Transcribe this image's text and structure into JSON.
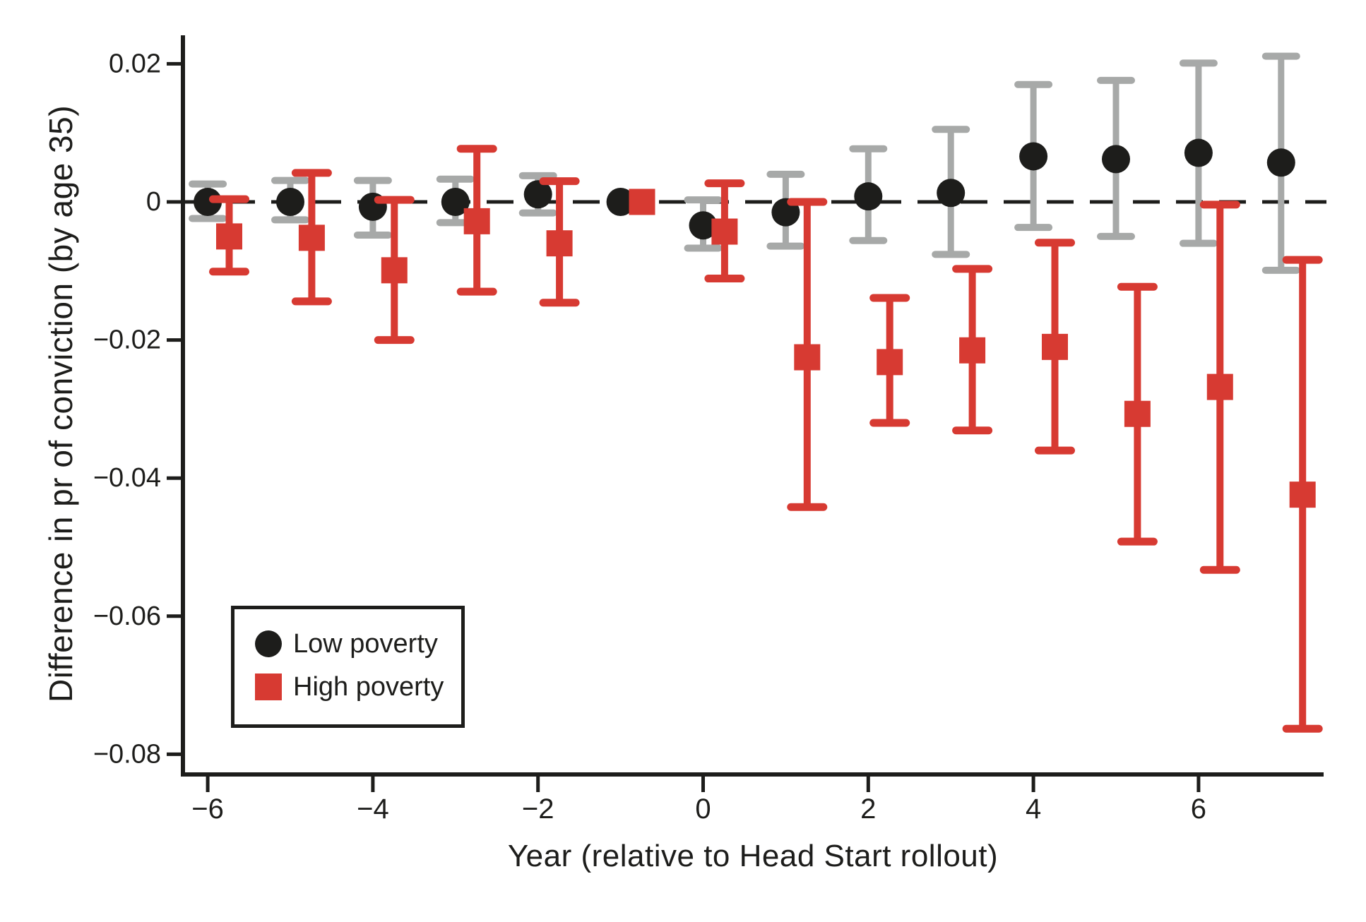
{
  "figure": {
    "background": "#ffffff"
  },
  "colors": {
    "axis": "#1d1d1b",
    "text": "#1d1d1b",
    "low_poverty_marker": "#1d1d1b",
    "low_poverty_errorbar": "#a7a9a8",
    "high_poverty_marker": "#d73a32",
    "high_poverty_errorbar": "#d73a32"
  },
  "chart_data": {
    "type": "scatter",
    "title": "",
    "xlabel": "Year (relative to Head Start rollout)",
    "ylabel": "Difference in pr of conviction (by age 35)",
    "grid": false,
    "zero_line": {
      "shown": true,
      "value": 0,
      "style": "dashed",
      "color": "#1d1d1b"
    },
    "xlim": [
      -6.3,
      7.5
    ],
    "ylim": [
      -0.083,
      0.024
    ],
    "x_ticks": [
      {
        "value": -6,
        "label": "−6"
      },
      {
        "value": -4,
        "label": "−4"
      },
      {
        "value": -2,
        "label": "−2"
      },
      {
        "value": 0,
        "label": "0"
      },
      {
        "value": 2,
        "label": "2"
      },
      {
        "value": 4,
        "label": "4"
      },
      {
        "value": 6,
        "label": "6"
      }
    ],
    "y_ticks": [
      {
        "value": 0.02,
        "label": "0.02"
      },
      {
        "value": 0,
        "label": "0"
      },
      {
        "value": -0.02,
        "label": "−0.02"
      },
      {
        "value": -0.04,
        "label": "−0.04"
      },
      {
        "value": -0.06,
        "label": "−0.06"
      },
      {
        "value": -0.08,
        "label": "−0.08"
      }
    ],
    "legend": {
      "position": "bottom-left",
      "border": true,
      "entries": [
        {
          "label": "Low poverty",
          "marker": "circle",
          "color": "#1d1d1b"
        },
        {
          "label": "High poverty",
          "marker": "square",
          "color": "#d73a32"
        }
      ]
    },
    "series": [
      {
        "name": "Low poverty",
        "marker": "circle",
        "marker_color": "#1d1d1b",
        "errorbar_color": "#a7a9a8",
        "x_offset": 0,
        "points": [
          {
            "x": -6,
            "y": 0.0,
            "ci_high": 0.0026,
            "ci_low": -0.0024
          },
          {
            "x": -5,
            "y": 0.0,
            "ci_high": 0.0031,
            "ci_low": -0.0026
          },
          {
            "x": -4,
            "y": -0.0007,
            "ci_high": 0.0031,
            "ci_low": -0.0048
          },
          {
            "x": -3,
            "y": 0.0,
            "ci_high": 0.0033,
            "ci_low": -0.003
          },
          {
            "x": -2,
            "y": 0.0011,
            "ci_high": 0.0038,
            "ci_low": -0.0016
          },
          {
            "x": -1,
            "y": 0.0,
            "ci_high": null,
            "ci_low": null
          },
          {
            "x": 0,
            "y": -0.0034,
            "ci_high": 0.0003,
            "ci_low": -0.0067
          },
          {
            "x": 1,
            "y": -0.0015,
            "ci_high": 0.004,
            "ci_low": -0.0064
          },
          {
            "x": 2,
            "y": 0.0008,
            "ci_high": 0.0077,
            "ci_low": -0.0056
          },
          {
            "x": 3,
            "y": 0.0013,
            "ci_high": 0.0105,
            "ci_low": -0.0076
          },
          {
            "x": 4,
            "y": 0.0066,
            "ci_high": 0.017,
            "ci_low": -0.0037
          },
          {
            "x": 5,
            "y": 0.0062,
            "ci_high": 0.0176,
            "ci_low": -0.005
          },
          {
            "x": 6,
            "y": 0.0071,
            "ci_high": 0.0201,
            "ci_low": -0.006
          },
          {
            "x": 7,
            "y": 0.0057,
            "ci_high": 0.0211,
            "ci_low": -0.0099
          }
        ]
      },
      {
        "name": "High poverty",
        "marker": "square",
        "marker_color": "#d73a32",
        "errorbar_color": "#d73a32",
        "x_offset": 0.26,
        "points": [
          {
            "x": -6,
            "y": -0.005,
            "ci_high": 0.0004,
            "ci_low": -0.0101
          },
          {
            "x": -5,
            "y": -0.0052,
            "ci_high": 0.0042,
            "ci_low": -0.0144
          },
          {
            "x": -4,
            "y": -0.0099,
            "ci_high": 0.0003,
            "ci_low": -0.02
          },
          {
            "x": -3,
            "y": -0.0028,
            "ci_high": 0.0077,
            "ci_low": -0.013
          },
          {
            "x": -2,
            "y": -0.006,
            "ci_high": 0.003,
            "ci_low": -0.0146
          },
          {
            "x": -1,
            "y": 0.0,
            "ci_high": null,
            "ci_low": null
          },
          {
            "x": 0,
            "y": -0.0043,
            "ci_high": 0.0027,
            "ci_low": -0.0111
          },
          {
            "x": 1,
            "y": -0.0225,
            "ci_high": 0.0,
            "ci_low": -0.0442
          },
          {
            "x": 2,
            "y": -0.0232,
            "ci_high": -0.0139,
            "ci_low": -0.032
          },
          {
            "x": 3,
            "y": -0.0215,
            "ci_high": -0.0097,
            "ci_low": -0.0331
          },
          {
            "x": 4,
            "y": -0.021,
            "ci_high": -0.0059,
            "ci_low": -0.036
          },
          {
            "x": 5,
            "y": -0.0307,
            "ci_high": -0.0123,
            "ci_low": -0.0492
          },
          {
            "x": 6,
            "y": -0.0268,
            "ci_high": -0.0004,
            "ci_low": -0.0533
          },
          {
            "x": 7,
            "y": -0.0424,
            "ci_high": -0.0084,
            "ci_low": -0.0763
          }
        ]
      }
    ]
  }
}
